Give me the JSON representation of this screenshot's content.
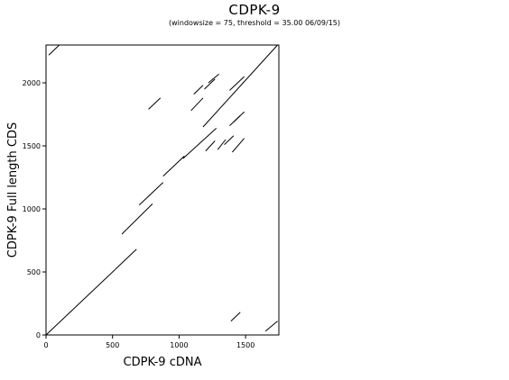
{
  "chart_data": {
    "type": "line",
    "title": "CDPK-9",
    "subtitle": "(windowsize = 75, threshold = 35.00  06/09/15)",
    "xlabel": "CDPK-9 cDNA",
    "ylabel": "CDPK-9  Full length CDS",
    "xlim": [
      0,
      1750
    ],
    "ylim": [
      0,
      2300
    ],
    "x_ticks": [
      0,
      500,
      1000,
      1500
    ],
    "y_ticks": [
      0,
      500,
      1000,
      1500,
      2000
    ],
    "x_tick_labels": [
      "0",
      "500",
      "1000",
      "1500"
    ],
    "y_tick_labels": [
      "0",
      "500",
      "1000",
      "1500",
      "2000"
    ],
    "grid": false,
    "color": "#000000",
    "series": [
      {
        "x": [
          0,
          680
        ],
        "y": [
          0,
          680
        ]
      },
      {
        "x": [
          570,
          800
        ],
        "y": [
          800,
          1040
        ]
      },
      {
        "x": [
          700,
          880
        ],
        "y": [
          1030,
          1210
        ]
      },
      {
        "x": [
          880,
          1040
        ],
        "y": [
          1260,
          1420
        ]
      },
      {
        "x": [
          1030,
          1280
        ],
        "y": [
          1400,
          1640
        ]
      },
      {
        "x": [
          1180,
          1740
        ],
        "y": [
          1650,
          2300
        ]
      },
      {
        "x": [
          770,
          860
        ],
        "y": [
          1790,
          1880
        ]
      },
      {
        "x": [
          1090,
          1180
        ],
        "y": [
          1780,
          1880
        ]
      },
      {
        "x": [
          1110,
          1180
        ],
        "y": [
          1910,
          1980
        ]
      },
      {
        "x": [
          1190,
          1270
        ],
        "y": [
          1950,
          2030
        ]
      },
      {
        "x": [
          1220,
          1300
        ],
        "y": [
          2000,
          2070
        ]
      },
      {
        "x": [
          1200,
          1270
        ],
        "y": [
          1460,
          1540
        ]
      },
      {
        "x": [
          1290,
          1350
        ],
        "y": [
          1470,
          1550
        ]
      },
      {
        "x": [
          1340,
          1410
        ],
        "y": [
          1510,
          1580
        ]
      },
      {
        "x": [
          1400,
          1490
        ],
        "y": [
          1450,
          1560
        ]
      },
      {
        "x": [
          1380,
          1460
        ],
        "y": [
          1660,
          1740
        ]
      },
      {
        "x": [
          1410,
          1490
        ],
        "y": [
          1690,
          1770
        ]
      },
      {
        "x": [
          1380,
          1490
        ],
        "y": [
          1940,
          2050
        ]
      },
      {
        "x": [
          20,
          100
        ],
        "y": [
          2220,
          2300
        ]
      },
      {
        "x": [
          1390,
          1460
        ],
        "y": [
          110,
          180
        ]
      },
      {
        "x": [
          1650,
          1740
        ],
        "y": [
          30,
          110
        ]
      }
    ]
  }
}
